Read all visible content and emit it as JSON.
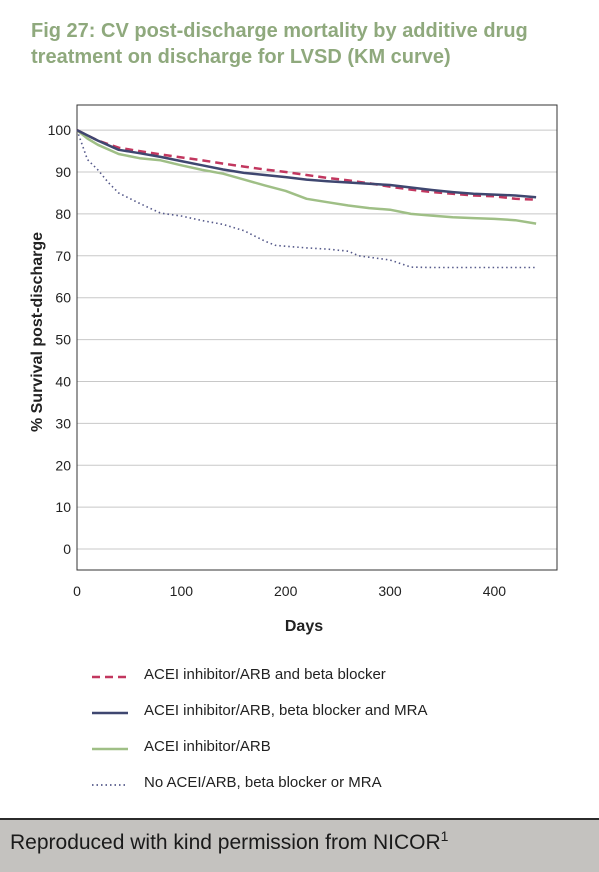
{
  "figure": {
    "number": "Fig 27:",
    "title": "CV post-discharge mortality by additive drug treatment on discharge for LVSD (KM curve)"
  },
  "footer": {
    "text": "Reproduced with kind permission from NICOR",
    "superscript": "1"
  },
  "chart_data": {
    "type": "line",
    "title": "CV post-discharge mortality by additive drug treatment on discharge for LVSD (KM curve)",
    "xlabel": "Days",
    "ylabel": "% Survival post-discharge",
    "xlim": [
      0,
      460
    ],
    "ylim": [
      -5,
      106
    ],
    "xticks": [
      0,
      100,
      200,
      300,
      400
    ],
    "yticks": [
      0,
      10,
      20,
      30,
      40,
      50,
      60,
      70,
      80,
      90,
      100
    ],
    "grid": "horizontal",
    "legend_position": "bottom",
    "series": [
      {
        "name": "ACEI inhibitor/ARB and beta blocker",
        "color": "#c2375f",
        "style": "dashed",
        "x": [
          0,
          20,
          40,
          60,
          80,
          100,
          120,
          140,
          160,
          180,
          200,
          220,
          240,
          260,
          280,
          300,
          320,
          340,
          360,
          380,
          400,
          420,
          440
        ],
        "y": [
          100,
          97.5,
          95.8,
          95,
          94.2,
          93.5,
          92.8,
          92,
          91.3,
          90.6,
          90,
          89.3,
          88.6,
          88,
          87.3,
          86.5,
          85.8,
          85.2,
          84.8,
          84.4,
          84.2,
          83.6,
          83.4
        ]
      },
      {
        "name": "ACEI inhibitor/ARB, beta blocker and MRA",
        "color": "#3f4770",
        "style": "solid",
        "x": [
          0,
          20,
          40,
          60,
          80,
          100,
          120,
          140,
          160,
          180,
          200,
          220,
          240,
          260,
          280,
          300,
          320,
          340,
          360,
          380,
          400,
          420,
          440
        ],
        "y": [
          100,
          97.5,
          95.3,
          94.5,
          93.6,
          92.6,
          91.6,
          90.6,
          89.8,
          89.3,
          88.8,
          88.2,
          87.8,
          87.5,
          87.2,
          86.9,
          86.3,
          85.7,
          85.2,
          84.8,
          84.6,
          84.4,
          84
        ]
      },
      {
        "name": "ACEI inhibitor/ARB",
        "color": "#9fbf86",
        "style": "solid",
        "x": [
          0,
          10,
          20,
          40,
          60,
          80,
          100,
          120,
          140,
          160,
          180,
          200,
          220,
          240,
          260,
          280,
          300,
          320,
          340,
          360,
          380,
          400,
          420,
          440
        ],
        "y": [
          100,
          98,
          96.5,
          94.3,
          93.3,
          92.8,
          91.6,
          90.5,
          89.6,
          88.2,
          86.8,
          85.5,
          83.6,
          82.8,
          82,
          81.4,
          81,
          80,
          79.6,
          79.2,
          79,
          78.8,
          78.5,
          77.7
        ]
      },
      {
        "name": "No ACEI/ARB, beta blocker or MRA",
        "color": "#55598a",
        "style": "dotted",
        "x": [
          0,
          10,
          20,
          30,
          40,
          60,
          80,
          100,
          120,
          140,
          160,
          180,
          190,
          200,
          220,
          240,
          260,
          270,
          300,
          320,
          340,
          360,
          380,
          400,
          420,
          440
        ],
        "y": [
          100,
          93,
          90.5,
          87.5,
          85,
          82.5,
          80.2,
          79.5,
          78.4,
          77.5,
          76,
          73.5,
          72.5,
          72.3,
          71.9,
          71.6,
          71.1,
          70,
          69,
          67.3,
          67.2,
          67.2,
          67.2,
          67.2,
          67.2,
          67.2
        ]
      }
    ]
  }
}
